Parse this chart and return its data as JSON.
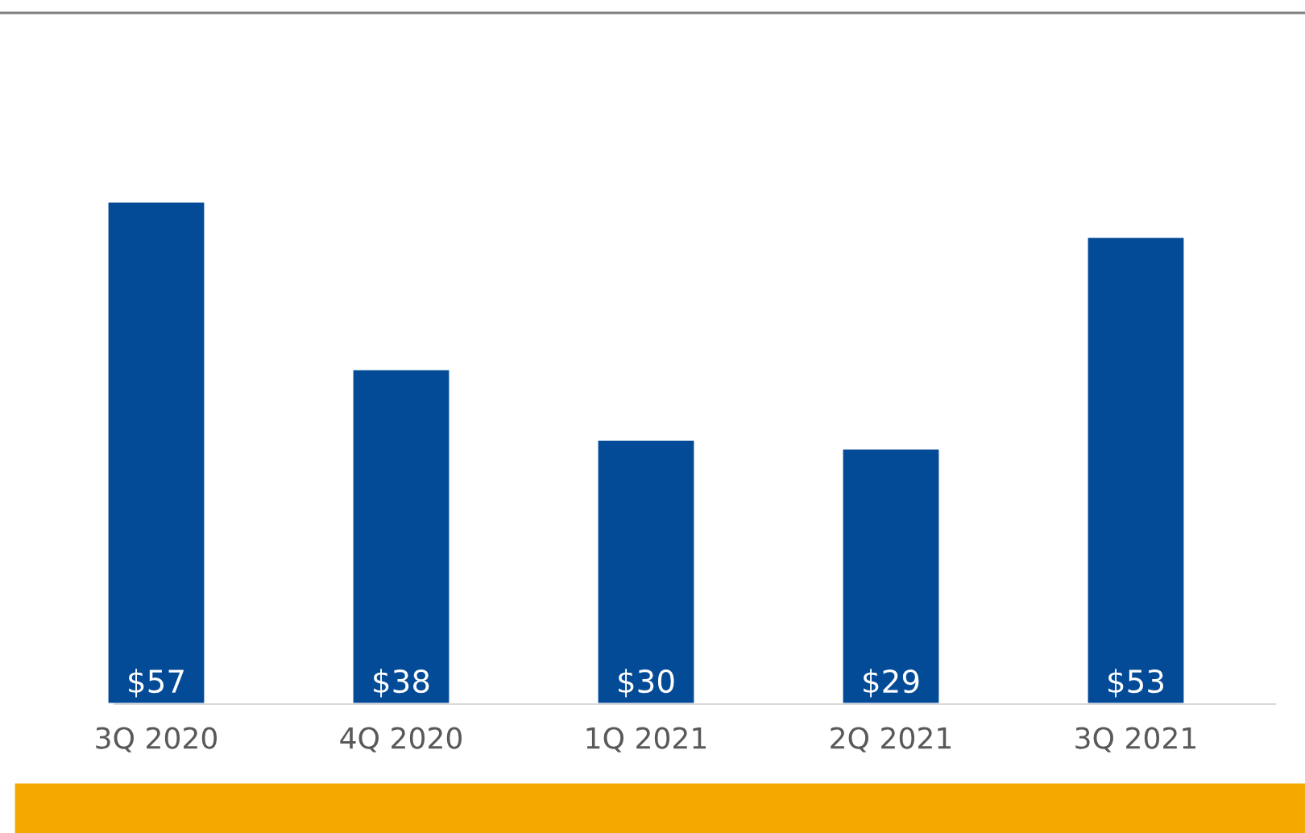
{
  "chart_data": {
    "type": "bar",
    "categories": [
      "3Q 2020",
      "4Q 2020",
      "1Q 2021",
      "2Q 2021",
      "3Q 2021"
    ],
    "values": [
      57,
      38,
      30,
      29,
      53
    ],
    "value_labels": [
      "$57",
      "$38",
      "$30",
      "$29",
      "$53"
    ],
    "color": "#034a97",
    "grid": false,
    "legend": false
  }
}
